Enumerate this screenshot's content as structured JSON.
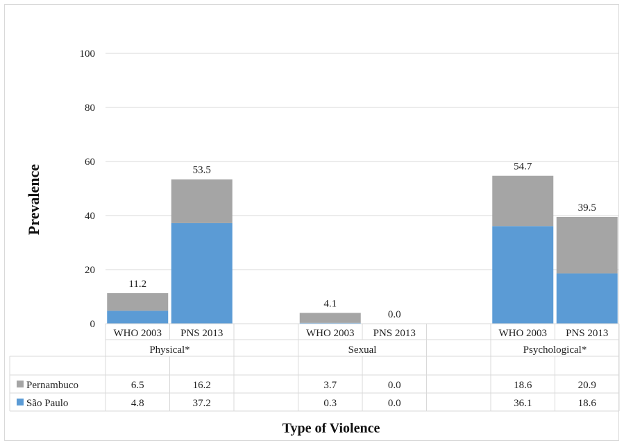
{
  "chart_data": {
    "type": "bar",
    "stacked": true,
    "ylabel": "Prevalence",
    "xlabel": "Type of Violence",
    "ylim": [
      0,
      100
    ],
    "yticks": [
      0,
      20,
      40,
      60,
      80,
      100
    ],
    "gridlines": true,
    "groups": [
      {
        "label": "Physical*",
        "categories": [
          "WHO 2003",
          "PNS 2013"
        ]
      },
      {
        "label": "Sexual",
        "categories": [
          "WHO 2003",
          "PNS 2013"
        ]
      },
      {
        "label": "Psychological*",
        "categories": [
          "WHO 2003",
          "PNS 2013"
        ]
      }
    ],
    "series": [
      {
        "name": "São Paulo",
        "color": "#5b9bd5",
        "values": [
          "4.8",
          "37.2",
          "0.3",
          "0.0",
          "36.1",
          "18.6"
        ]
      },
      {
        "name": "Pernambuco",
        "color": "#a5a5a5",
        "values": [
          "6.5",
          "16.2",
          "3.7",
          "0.0",
          "18.6",
          "20.9"
        ]
      }
    ],
    "totals": [
      "11.2",
      "53.5",
      "4.1",
      "0.0",
      "54.7",
      "39.5"
    ],
    "table_rows": [
      "Pernambuco",
      "São Paulo"
    ],
    "legend_position": "data table"
  }
}
